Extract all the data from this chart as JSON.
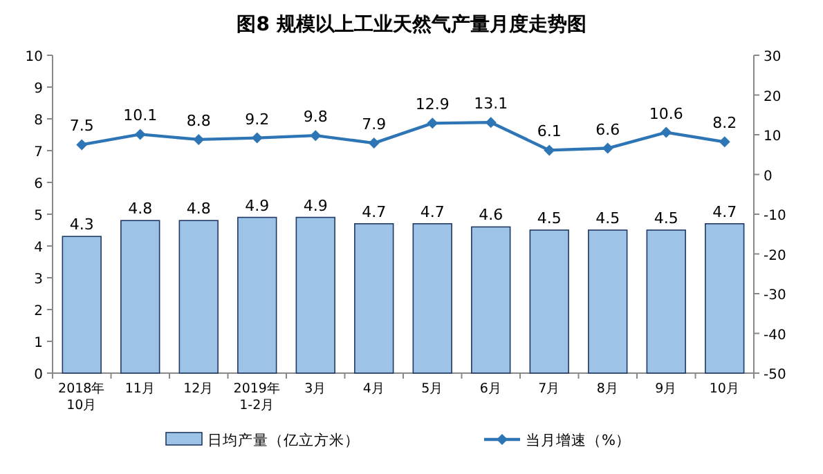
{
  "chart_data": {
    "type": "bar",
    "title": "图8  规模以上工业天然气产量月度走势图",
    "categories": [
      "2018年\n10月",
      "11月",
      "12月",
      "2019年\n1-2月",
      "3月",
      "4月",
      "5月",
      "6月",
      "7月",
      "8月",
      "9月",
      "10月"
    ],
    "series": [
      {
        "name": "日均产量（亿立方米）",
        "color": "#9dc3e6",
        "values": [
          4.3,
          4.8,
          4.8,
          4.9,
          4.9,
          4.7,
          4.7,
          4.6,
          4.5,
          4.5,
          4.5,
          4.7
        ]
      },
      {
        "name": "当月增速（%）",
        "type": "line",
        "axis": "y2",
        "color": "#2e75b6",
        "marker": "diamond",
        "values": [
          7.5,
          10.1,
          8.8,
          9.2,
          9.8,
          7.9,
          12.9,
          13.1,
          6.1,
          6.6,
          10.6,
          8.2
        ]
      }
    ],
    "ylim": [
      0,
      10
    ],
    "yticks": [
      0,
      1,
      2,
      3,
      4,
      5,
      6,
      7,
      8,
      9,
      10
    ],
    "y2lim": [
      -50,
      30
    ],
    "y2ticks": [
      -50,
      -40,
      -30,
      -20,
      -10,
      0,
      10,
      20,
      30
    ],
    "data_labels": true,
    "legend": "bottom",
    "grid": false
  }
}
